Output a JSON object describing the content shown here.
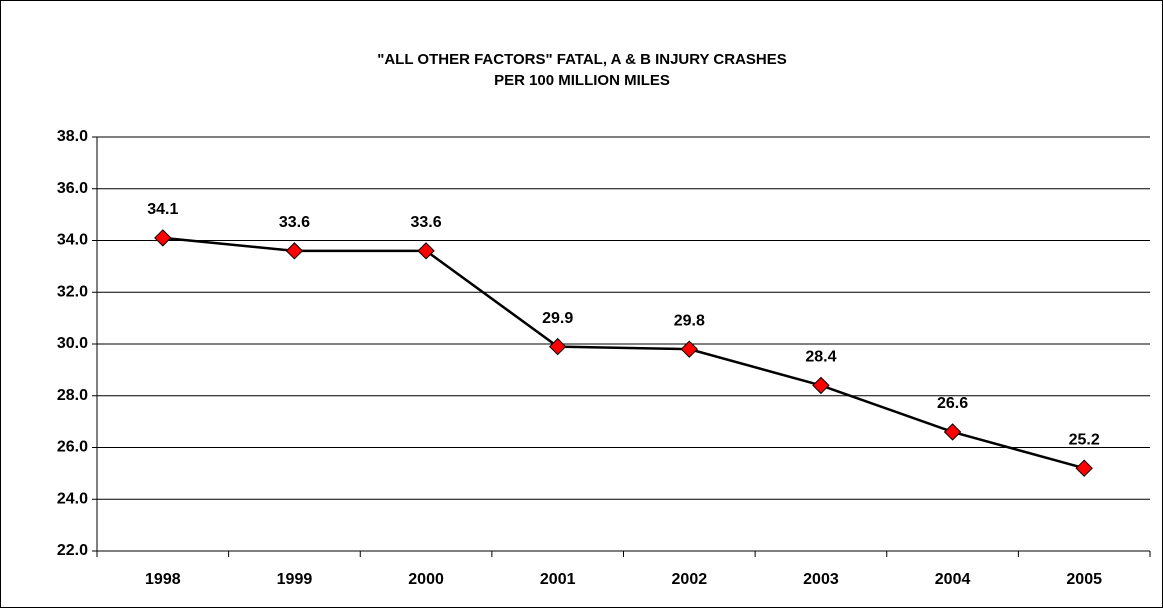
{
  "chart_data": {
    "type": "line",
    "title": [
      "\"ALL OTHER FACTORS\" FATAL, A  & B INJURY CRASHES",
      "PER 100 MILLION MILES"
    ],
    "categories": [
      "1998",
      "1999",
      "2000",
      "2001",
      "2002",
      "2003",
      "2004",
      "2005"
    ],
    "values": [
      34.1,
      33.6,
      33.6,
      29.9,
      29.8,
      28.4,
      26.6,
      25.2
    ],
    "color": "#000000",
    "marker_color": "#ff0000",
    "ylim": [
      22,
      38
    ],
    "yticks": [
      {
        "value": 22,
        "label": "22.0"
      },
      {
        "value": 24,
        "label": "24.0"
      },
      {
        "value": 26,
        "label": "26.0"
      },
      {
        "value": 28,
        "label": "28.0"
      },
      {
        "value": 30,
        "label": "30.0"
      },
      {
        "value": 32,
        "label": "32.0"
      },
      {
        "value": 34,
        "label": "34.0"
      },
      {
        "value": 36,
        "label": "36.0"
      },
      {
        "value": 38,
        "label": "38.0"
      }
    ],
    "grid": true
  }
}
